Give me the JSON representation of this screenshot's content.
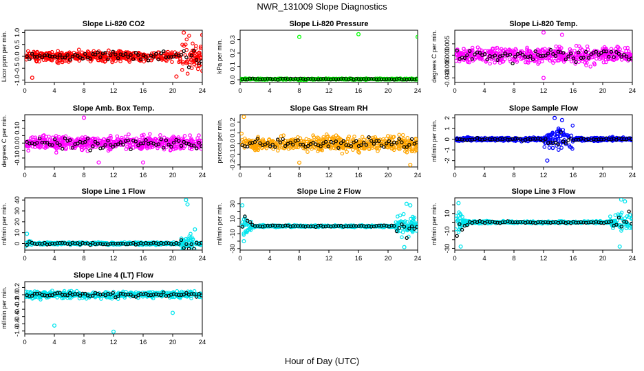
{
  "figure": {
    "title": "NWR_131009  Slope Diagnostics",
    "xlabel": "Hour of Day (UTC)"
  },
  "chart_data": [
    {
      "type": "scatter",
      "title": "Slope Li-820 CO2",
      "ylabel": "Licor ppm per min.",
      "color": "#ff0000",
      "xlim": [
        0,
        24
      ],
      "ylim": [
        -1.1,
        1.1
      ],
      "xticks": [
        0,
        4,
        8,
        12,
        16,
        20,
        24
      ],
      "yticks": [
        -1.0,
        -0.5,
        0.0,
        0.5,
        1.0
      ],
      "ytick_labels": [
        "-1.0",
        "-0.5",
        "0.0",
        "0.5",
        "1.0"
      ],
      "gen": {
        "base": 0,
        "spread": 0.25,
        "step": 0.22,
        "mid": 0,
        "hour_blowup": {
          "21": 0.55,
          "22": 0.55,
          "23": 0.5
        }
      },
      "outliers": [
        [
          21.5,
          1.0
        ],
        [
          24,
          0.9
        ],
        [
          20.5,
          -0.85
        ],
        [
          1,
          -0.9
        ]
      ]
    },
    {
      "type": "scatter",
      "title": "Slope Li-820 Pressure",
      "ylabel": "kPa per min.",
      "color": "#00ff00",
      "xlim": [
        0,
        24
      ],
      "ylim": [
        -0.02,
        0.37
      ],
      "xticks": [
        0,
        4,
        8,
        12,
        16,
        20,
        24
      ],
      "yticks": [
        0.0,
        0.1,
        0.2,
        0.3
      ],
      "ytick_labels": [
        "0.0",
        "0.1",
        "0.2",
        "0.3"
      ],
      "gen": {
        "base": 0.005,
        "spread": 0.006,
        "step": 0.0,
        "mid": 0.005
      },
      "outliers": [
        [
          8,
          0.32
        ],
        [
          16,
          0.34
        ],
        [
          24,
          0.32
        ]
      ]
    },
    {
      "type": "scatter",
      "title": "Slope Li-820 Temp.",
      "ylabel": "degrees C per min.",
      "color": "#ff00ff",
      "xlim": [
        0,
        24
      ],
      "ylim": [
        -0.012,
        0.011
      ],
      "xticks": [
        0,
        4,
        8,
        12,
        16,
        20,
        24
      ],
      "yticks": [
        -0.01,
        -0.005,
        0.0,
        0.005
      ],
      "ytick_labels": [
        "-0.010",
        "-0.005",
        "0.000",
        "0.005"
      ],
      "gen": {
        "base": 0.0,
        "spread": 0.004,
        "step": 0.004,
        "mid": 0.0
      },
      "outliers": [
        [
          12,
          0.01
        ],
        [
          14.5,
          0.009
        ],
        [
          12,
          -0.01
        ]
      ]
    },
    {
      "type": "scatter",
      "title": "Slope Amb. Box Temp.",
      "ylabel": "degrees C per min.",
      "color": "#ff00ff",
      "xlim": [
        0,
        24
      ],
      "ylim": [
        -0.16,
        0.19
      ],
      "xticks": [
        0,
        4,
        8,
        12,
        16,
        20,
        24
      ],
      "yticks": [
        -0.1,
        -0.05,
        0.0,
        0.05,
        0.1,
        0.15
      ],
      "ytick_labels": [
        "-0.10",
        "",
        "0.00",
        "",
        "0.10",
        ""
      ],
      "gen": {
        "base": 0.0,
        "spread": 0.05,
        "step": 0.05,
        "mid": 0.0
      },
      "outliers": [
        [
          8,
          0.17
        ],
        [
          10,
          -0.13
        ],
        [
          16,
          -0.13
        ]
      ]
    },
    {
      "type": "scatter",
      "title": "Slope Gas Stream RH",
      "ylabel": "percent per min.",
      "color": "#ffa500",
      "xlim": [
        0,
        24
      ],
      "ylim": [
        -0.22,
        0.27
      ],
      "xticks": [
        0,
        4,
        8,
        12,
        16,
        20,
        24
      ],
      "yticks": [
        -0.2,
        -0.1,
        0.0,
        0.1,
        0.2
      ],
      "ytick_labels": [
        "-0.2",
        "-0.1",
        "0.0",
        "0.1",
        "0.2"
      ],
      "gen": {
        "base": 0.0,
        "spread": 0.08,
        "step": 0.06,
        "mid": 0.0
      },
      "outliers": [
        [
          0.5,
          0.25
        ],
        [
          23,
          -0.2
        ],
        [
          8,
          -0.18
        ]
      ]
    },
    {
      "type": "scatter",
      "title": "Slope Sample Flow",
      "ylabel": "ml/min per min.",
      "color": "#0000ff",
      "xlim": [
        0,
        24
      ],
      "ylim": [
        -2.6,
        2.3
      ],
      "xticks": [
        0,
        4,
        8,
        12,
        16,
        20,
        24
      ],
      "yticks": [
        -2,
        -1,
        0,
        1,
        2
      ],
      "ytick_labels": [
        "-2",
        "-1",
        "0",
        "1",
        "2"
      ],
      "gen": {
        "base": 0.0,
        "spread": 0.18,
        "step": 0.12,
        "mid": 0.0,
        "hour_blowup": {
          "12": 1.0,
          "13": 1.0,
          "14": 1.1,
          "15": 1.1
        }
      },
      "outliers": [
        [
          13.5,
          2.0
        ],
        [
          14.5,
          1.8
        ],
        [
          12.5,
          -2.0
        ]
      ]
    },
    {
      "type": "scatter",
      "title": "Slope Line 1 Flow",
      "ylabel": "ml/min per min.",
      "color": "#00e5ee",
      "xlim": [
        0,
        24
      ],
      "ylim": [
        -6,
        42
      ],
      "xticks": [
        0,
        4,
        8,
        12,
        16,
        20,
        24
      ],
      "yticks": [
        0,
        10,
        20,
        30,
        40
      ],
      "ytick_labels": [
        "0",
        "10",
        "20",
        "30",
        "40"
      ],
      "gen": {
        "base": 0.0,
        "spread": 1.3,
        "step": 0.6,
        "mid": 0.0,
        "hour_blowup": {
          "0": 2.5,
          "21": 6.0,
          "22": 10.0
        }
      },
      "outliers": [
        [
          21.8,
          40
        ],
        [
          22,
          36
        ],
        [
          23,
          13
        ],
        [
          0.3,
          9
        ]
      ]
    },
    {
      "type": "scatter",
      "title": "Slope Line 2 Flow",
      "ylabel": "ml/min per min.",
      "color": "#00e5ee",
      "xlim": [
        0,
        24
      ],
      "ylim": [
        -32,
        38
      ],
      "xticks": [
        0,
        4,
        8,
        12,
        16,
        20,
        24
      ],
      "yticks": [
        -30,
        -20,
        -10,
        0,
        10,
        20,
        30
      ],
      "ytick_labels": [
        "-30",
        "",
        "-10",
        "",
        "10",
        "",
        "30"
      ],
      "gen": {
        "base": 0.0,
        "spread": 1.5,
        "step": 1.2,
        "mid": 0.0,
        "hour_blowup": {
          "0": 14,
          "1": 7,
          "21": 14,
          "22": 16,
          "23": 12
        }
      },
      "outliers": [
        [
          22.5,
          30
        ],
        [
          23,
          28
        ],
        [
          0.3,
          28
        ],
        [
          22.2,
          -28
        ],
        [
          0.5,
          -20
        ]
      ]
    },
    {
      "type": "scatter",
      "title": "Slope Line 3 Flow",
      "ylabel": "ml/min per min.",
      "color": "#00e5ee",
      "xlim": [
        0,
        24
      ],
      "ylim": [
        -32,
        28
      ],
      "xticks": [
        0,
        4,
        8,
        12,
        16,
        20,
        24
      ],
      "yticks": [
        -30,
        -20,
        -10,
        0,
        10,
        20
      ],
      "ytick_labels": [
        "-30",
        "",
        "-10",
        "",
        "10",
        ""
      ],
      "gen": {
        "base": 0.0,
        "spread": 1.5,
        "step": 1.0,
        "mid": 0.0,
        "hour_blowup": {
          "0": 12,
          "1": 6,
          "21": 8,
          "22": 14,
          "23": 10
        }
      },
      "outliers": [
        [
          22.5,
          26
        ],
        [
          23,
          24
        ],
        [
          0.5,
          22
        ],
        [
          22.3,
          -28
        ],
        [
          0.8,
          -28
        ]
      ]
    },
    {
      "type": "scatter",
      "title": "Slope Line 4 (LT) Flow",
      "ylabel": "ml/min per min.",
      "color": "#00e5ee",
      "xlim": [
        0,
        24
      ],
      "ylim": [
        -1.08,
        0.36
      ],
      "xticks": [
        0,
        4,
        8,
        12,
        16,
        20,
        24
      ],
      "yticks": [
        -1.0,
        -0.8,
        -0.6,
        -0.4,
        -0.2,
        0.0,
        0.2
      ],
      "ytick_labels": [
        "-1.0",
        "-0.8",
        "-0.6",
        "-0.4",
        "-0.2",
        "0.0",
        "0.2"
      ],
      "gen": {
        "base": 0.0,
        "spread": 0.1,
        "step": 0.1,
        "mid": 0.0
      },
      "outliers": [
        [
          12,
          -1.02
        ],
        [
          4,
          -0.85
        ],
        [
          20,
          -0.5
        ]
      ]
    }
  ]
}
